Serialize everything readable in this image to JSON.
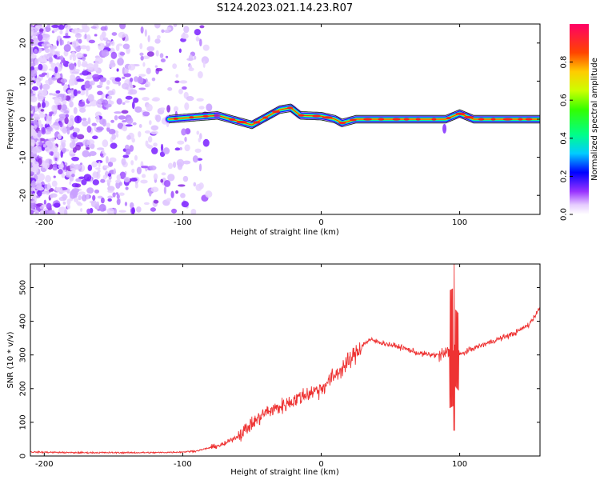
{
  "title": "S124.2023.021.14.23.R07",
  "chart_data": [
    {
      "type": "heatmap",
      "xlabel": "Height of straight line (km)",
      "ylabel": "Frequency (Hz)",
      "xlim": [
        -210,
        158
      ],
      "ylim": [
        -25,
        25
      ],
      "x_ticks": [
        "-200",
        "-100",
        "0",
        "100"
      ],
      "y_ticks": [
        "20",
        "10",
        "0",
        "-10",
        "-20"
      ],
      "grid": false,
      "colorbar": {
        "label": "Normalized spectral amplitude",
        "range": [
          0,
          1
        ],
        "ticks": [
          "0.0",
          "0.2",
          "0.4",
          "0.6",
          "0.8"
        ]
      },
      "signal_center_freq": [
        {
          "x": -110,
          "y": 0.0
        },
        {
          "x": -75,
          "y": 1.0
        },
        {
          "x": -60,
          "y": -0.5
        },
        {
          "x": -50,
          "y": -1.5
        },
        {
          "x": -40,
          "y": 0.5
        },
        {
          "x": -30,
          "y": 2.5
        },
        {
          "x": -22,
          "y": 3.0
        },
        {
          "x": -15,
          "y": 1.0
        },
        {
          "x": 0,
          "y": 0.8
        },
        {
          "x": 10,
          "y": 0.0
        },
        {
          "x": 15,
          "y": -1.0
        },
        {
          "x": 25,
          "y": 0.0
        },
        {
          "x": 80,
          "y": 0.0
        },
        {
          "x": 90,
          "y": 0.0
        },
        {
          "x": 100,
          "y": 1.5
        },
        {
          "x": 110,
          "y": 0.0
        },
        {
          "x": 158,
          "y": 0.0
        }
      ]
    },
    {
      "type": "line",
      "xlabel": "Height of straight line (km)",
      "ylabel": "SNR (10 * v/v)",
      "xlim": [
        -210,
        158
      ],
      "ylim": [
        0,
        570
      ],
      "x_ticks": [
        "-200",
        "-100",
        "0",
        "100"
      ],
      "y_ticks": [
        "0",
        "100",
        "200",
        "300",
        "400",
        "500"
      ],
      "grid": false,
      "series": [
        {
          "color": "#ee3333",
          "x": [
            -210,
            -180,
            -150,
            -120,
            -100,
            -90,
            -80,
            -70,
            -60,
            -50,
            -40,
            -30,
            -20,
            -10,
            0,
            10,
            20,
            30,
            35,
            40,
            50,
            60,
            70,
            80,
            88,
            92,
            96,
            100,
            110,
            120,
            130,
            140,
            150,
            158
          ],
          "y": [
            12,
            10,
            10,
            10,
            12,
            15,
            25,
            35,
            60,
            95,
            130,
            145,
            165,
            185,
            200,
            240,
            280,
            330,
            345,
            340,
            330,
            320,
            305,
            300,
            300,
            310,
            320,
            300,
            320,
            335,
            350,
            365,
            390,
            440
          ]
        }
      ]
    }
  ]
}
